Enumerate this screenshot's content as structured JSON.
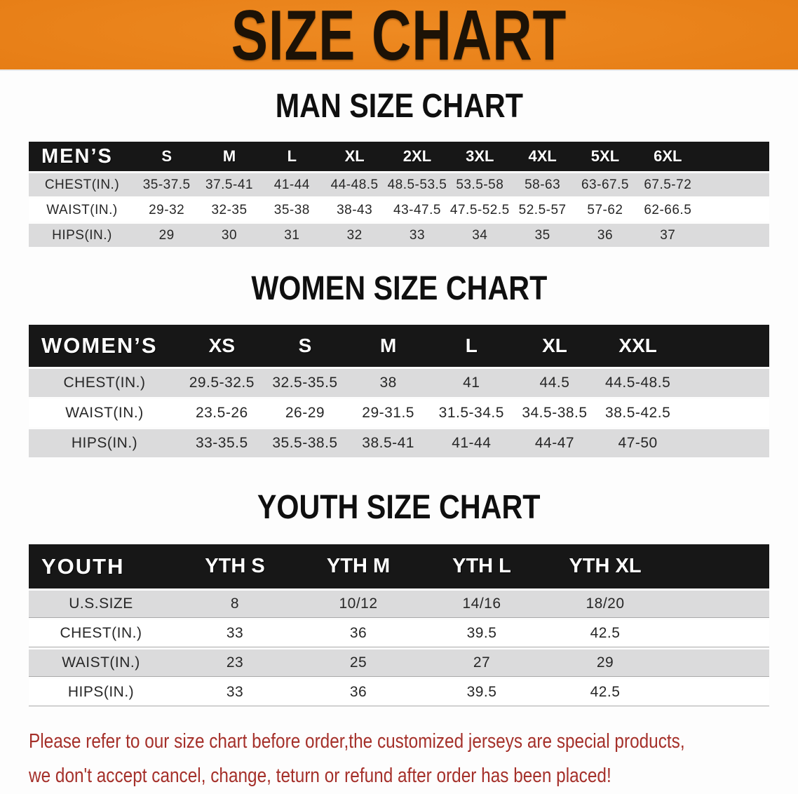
{
  "banner": {
    "title": "SIZE CHART"
  },
  "sections": [
    {
      "title": "MAN SIZE CHART"
    },
    {
      "title": "WOMEN SIZE CHART"
    },
    {
      "title": "YOUTH SIZE CHART"
    }
  ],
  "tables": [
    {
      "id": "men",
      "header_label": "MEN’S",
      "columns": [
        "S",
        "M",
        "L",
        "XL",
        "2XL",
        "3XL",
        "4XL",
        "5XL",
        "6XL"
      ],
      "rows": [
        {
          "label": "CHEST(IN.)",
          "values": [
            "35-37.5",
            "37.5-41",
            "41-44",
            "44-48.5",
            "48.5-53.5",
            "53.5-58",
            "58-63",
            "63-67.5",
            "67.5-72"
          ]
        },
        {
          "label": "WAIST(IN.)",
          "values": [
            "29-32",
            "32-35",
            "35-38",
            "38-43",
            "43-47.5",
            "47.5-52.5",
            "52.5-57",
            "57-62",
            "62-66.5"
          ]
        },
        {
          "label": "HIPS(IN.)",
          "values": [
            "29",
            "30",
            "31",
            "32",
            "33",
            "34",
            "35",
            "36",
            "37"
          ]
        }
      ]
    },
    {
      "id": "women",
      "header_label": "WOMEN’S",
      "columns": [
        "XS",
        "S",
        "M",
        "L",
        "XL",
        "XXL"
      ],
      "rows": [
        {
          "label": "CHEST(IN.)",
          "values": [
            "29.5-32.5",
            "32.5-35.5",
            "38",
            "41",
            "44.5",
            "44.5-48.5"
          ]
        },
        {
          "label": "WAIST(IN.)",
          "values": [
            "23.5-26",
            "26-29",
            "29-31.5",
            "31.5-34.5",
            "34.5-38.5",
            "38.5-42.5"
          ]
        },
        {
          "label": "HIPS(IN.)",
          "values": [
            "33-35.5",
            "35.5-38.5",
            "38.5-41",
            "41-44",
            "44-47",
            "47-50"
          ]
        }
      ]
    },
    {
      "id": "youth",
      "header_label": "YOUTH",
      "columns": [
        "YTH S",
        "YTH M",
        "YTH L",
        "YTH XL"
      ],
      "rows": [
        {
          "label": "U.S.SIZE",
          "values": [
            "8",
            "10/12",
            "14/16",
            "18/20"
          ]
        },
        {
          "label": "CHEST(IN.)",
          "values": [
            "33",
            "36",
            "39.5",
            "42.5"
          ]
        },
        {
          "label": "WAIST(IN.)",
          "values": [
            "23",
            "25",
            "27",
            "29"
          ]
        },
        {
          "label": "HIPS(IN.)",
          "values": [
            "33",
            "36",
            "39.5",
            "42.5"
          ]
        }
      ]
    }
  ],
  "disclaimer": {
    "lines": [
      "Please refer to our size chart before order,the customized jerseys are special products,",
      "we don't accept cancel, change, teturn or refund after order has been placed!"
    ]
  },
  "colors": {
    "banner_orange": "#e67d15",
    "header_black": "#171717",
    "row_gray": "#dbdbdc",
    "disclaimer_red": "#a5302a"
  }
}
